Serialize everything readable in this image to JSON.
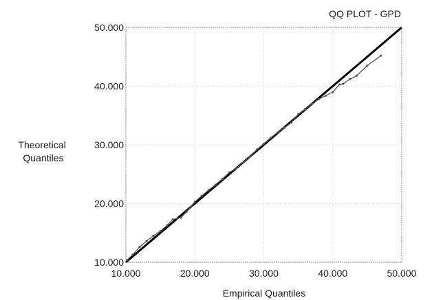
{
  "chart_data": {
    "type": "line",
    "title": "QQ PLOT - GPD",
    "xlabel": "Empirical Quantiles",
    "ylabel_lines": [
      "Theoretical",
      "Quantiles"
    ],
    "xlim": [
      10,
      50
    ],
    "ylim": [
      10,
      50
    ],
    "x_ticks": [
      "10.000",
      "20.000",
      "30.000",
      "40.000",
      "50.000"
    ],
    "y_ticks": [
      "10.000",
      "20.000",
      "30.000",
      "40.000",
      "50.000"
    ],
    "grid": true,
    "legend": "none",
    "series": [
      {
        "role": "reference line",
        "color": "#000000",
        "x": [
          10,
          50
        ],
        "y": [
          10,
          50
        ]
      },
      {
        "role": "quantile pairs",
        "color": "#555555",
        "x": [
          10.2,
          11.0,
          12.0,
          13.0,
          14.0,
          15.0,
          16.0,
          16.8,
          17.5,
          18.0,
          18.8,
          19.5,
          20.0,
          21.0,
          22.0,
          23.0,
          24.0,
          25.0,
          26.0,
          27.0,
          28.0,
          29.0,
          30.0,
          31.0,
          32.0,
          33.0,
          34.0,
          35.0,
          36.0,
          37.0,
          38.0,
          39.0,
          40.0,
          41.0,
          41.5,
          42.5,
          43.5,
          45.0,
          47.0
        ],
        "y": [
          10.4,
          11.3,
          12.6,
          13.6,
          14.5,
          15.3,
          16.3,
          17.3,
          17.5,
          17.6,
          18.6,
          19.5,
          20.3,
          21.3,
          22.3,
          23.2,
          24.2,
          25.3,
          26.0,
          27.0,
          28.0,
          29.2,
          30.2,
          31.2,
          32.1,
          32.9,
          33.8,
          35.2,
          36.1,
          37.0,
          37.8,
          38.4,
          39.0,
          40.3,
          40.4,
          41.2,
          41.8,
          43.5,
          45.2
        ]
      }
    ]
  }
}
